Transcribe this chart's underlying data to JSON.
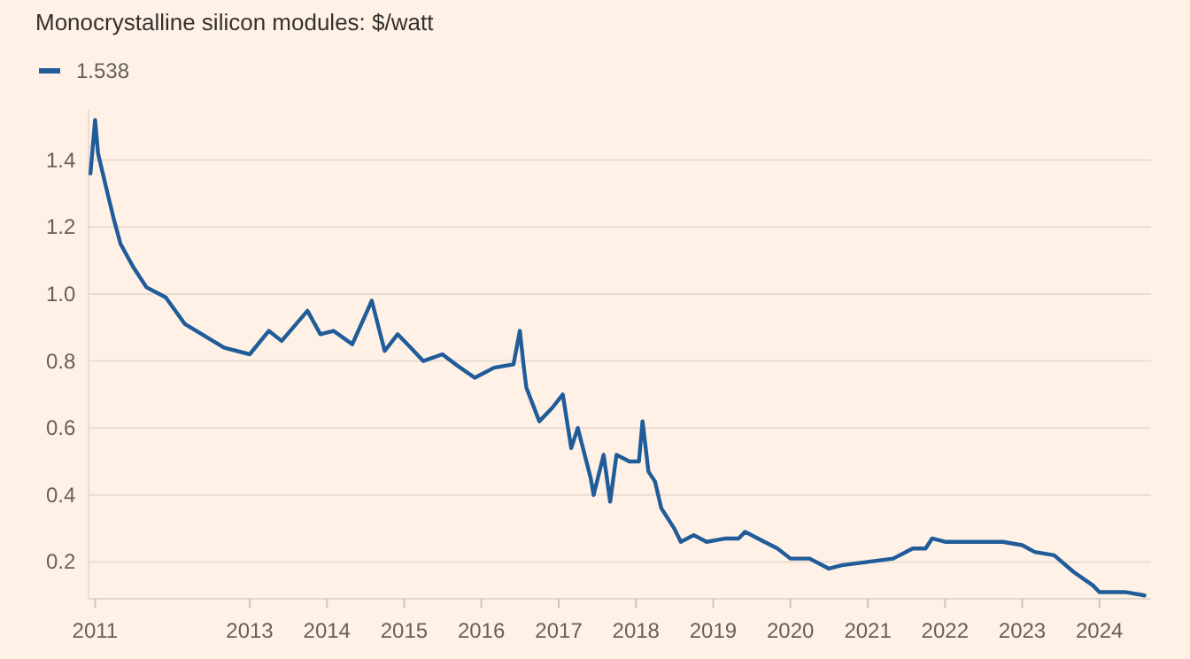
{
  "chart_data": {
    "type": "line",
    "title": "Monocrystalline silicon modules: $/watt",
    "legend": "top left",
    "grid": "y",
    "x": [
      "2010-12-10",
      "2011-01",
      "2011-01-15",
      "2011-03",
      "2011-04",
      "2011-05",
      "2011-07",
      "2011-09",
      "2011-12",
      "2012-03",
      "2012-09",
      "2013-01",
      "2013-04",
      "2013-06",
      "2013-10",
      "2013-12",
      "2014-02",
      "2014-05",
      "2014-08",
      "2014-10",
      "2014-12",
      "2015-02",
      "2015-04",
      "2015-07",
      "2015-09",
      "2015-12",
      "2016-03",
      "2016-06",
      "2016-07",
      "2016-07-20",
      "2016-08",
      "2016-10",
      "2016-12",
      "2017-01-20",
      "2017-03",
      "2017-04",
      "2017-06",
      "2017-06-15",
      "2017-08",
      "2017-09",
      "2017-10",
      "2017-12",
      "2018-01-15",
      "2018-02",
      "2018-03",
      "2018-04",
      "2018-05",
      "2018-07",
      "2018-08",
      "2018-10",
      "2018-12",
      "2019-03",
      "2019-05",
      "2019-06",
      "2019-08",
      "2019-11",
      "2020-01",
      "2020-04",
      "2020-07",
      "2020-09",
      "2021-01",
      "2021-05",
      "2021-08",
      "2021-10",
      "2021-11",
      "2022-01",
      "2022-05",
      "2022-10",
      "2023-01",
      "2023-03",
      "2023-06",
      "2023-09",
      "2023-12",
      "2024-01",
      "2024-05",
      "2024-08"
    ],
    "series": [
      {
        "name": "1.538",
        "color": "#1f5c99",
        "values": [
          1.36,
          1.52,
          1.42,
          1.3,
          1.22,
          1.15,
          1.08,
          1.02,
          0.99,
          0.91,
          0.84,
          0.82,
          0.89,
          0.86,
          0.95,
          0.88,
          0.89,
          0.85,
          0.98,
          0.83,
          0.88,
          0.84,
          0.8,
          0.82,
          0.79,
          0.75,
          0.78,
          0.79,
          0.89,
          0.78,
          0.72,
          0.62,
          0.66,
          0.7,
          0.54,
          0.6,
          0.45,
          0.4,
          0.52,
          0.38,
          0.52,
          0.5,
          0.5,
          0.62,
          0.47,
          0.44,
          0.36,
          0.3,
          0.26,
          0.28,
          0.26,
          0.27,
          0.27,
          0.29,
          0.27,
          0.24,
          0.21,
          0.21,
          0.18,
          0.19,
          0.2,
          0.21,
          0.24,
          0.24,
          0.27,
          0.26,
          0.26,
          0.26,
          0.25,
          0.23,
          0.22,
          0.17,
          0.13,
          0.11,
          0.11,
          0.1
        ]
      }
    ],
    "xlim": [
      "2010-12-01",
      "2024-09-01"
    ],
    "xticks": [
      "2011",
      "2013",
      "2014",
      "2015",
      "2016",
      "2017",
      "2018",
      "2019",
      "2020",
      "2021",
      "2022",
      "2023",
      "2024"
    ],
    "ylim": [
      0.09,
      1.55
    ],
    "yticks": [
      {
        "value": 0.2,
        "label": "0.2"
      },
      {
        "value": 0.4,
        "label": "0.4"
      },
      {
        "value": 0.6,
        "label": "0.6"
      },
      {
        "value": 0.8,
        "label": "0.8"
      },
      {
        "value": 1,
        "label": "1.0"
      },
      {
        "value": 1.2,
        "label": "1.2"
      },
      {
        "value": 1.4,
        "label": "1.4"
      }
    ]
  }
}
